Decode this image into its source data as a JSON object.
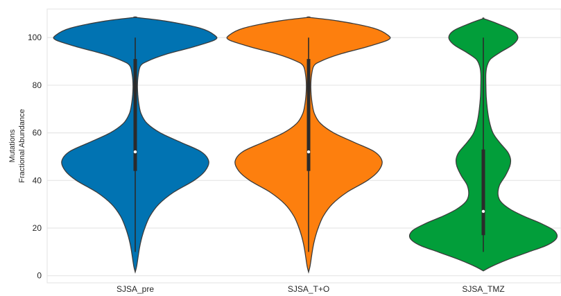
{
  "chart_data": {
    "type": "violin",
    "ylabel_lines": [
      "Mutations",
      "Fractional Abundance"
    ],
    "categories": [
      "SJSA_pre",
      "SJSA_T+O",
      "SJSA_TMZ"
    ],
    "y_ticks": [
      0,
      20,
      40,
      60,
      80,
      100
    ],
    "ylim": [
      -3,
      112
    ],
    "grid": "horizontal",
    "violins": [
      {
        "label": "SJSA_pre",
        "color": "#0173b2",
        "whisker": [
          10,
          100
        ],
        "box": [
          44,
          91
        ],
        "median": 52,
        "density": [
          [
            1.5,
            0.0
          ],
          [
            4,
            0.02
          ],
          [
            8,
            0.04
          ],
          [
            12,
            0.06
          ],
          [
            16,
            0.09
          ],
          [
            20,
            0.13
          ],
          [
            25,
            0.2
          ],
          [
            30,
            0.32
          ],
          [
            35,
            0.52
          ],
          [
            40,
            0.8
          ],
          [
            44,
            0.95
          ],
          [
            48,
            1.0
          ],
          [
            52,
            0.9
          ],
          [
            56,
            0.62
          ],
          [
            60,
            0.34
          ],
          [
            64,
            0.16
          ],
          [
            68,
            0.08
          ],
          [
            72,
            0.05
          ],
          [
            76,
            0.035
          ],
          [
            80,
            0.03
          ],
          [
            84,
            0.04
          ],
          [
            88,
            0.07
          ],
          [
            90,
            0.16
          ],
          [
            93,
            0.42
          ],
          [
            96,
            0.78
          ],
          [
            99,
            1.08
          ],
          [
            101,
            1.08
          ],
          [
            104,
            0.88
          ],
          [
            107,
            0.4
          ],
          [
            108.5,
            0.0
          ]
        ]
      },
      {
        "label": "SJSA_T+O",
        "color": "#fd7f0e",
        "whisker": [
          10,
          100
        ],
        "box": [
          44,
          91
        ],
        "median": 52,
        "density": [
          [
            1.5,
            0.0
          ],
          [
            4,
            0.02
          ],
          [
            8,
            0.04
          ],
          [
            12,
            0.06
          ],
          [
            16,
            0.09
          ],
          [
            20,
            0.13
          ],
          [
            25,
            0.2
          ],
          [
            30,
            0.32
          ],
          [
            35,
            0.52
          ],
          [
            40,
            0.8
          ],
          [
            44,
            0.95
          ],
          [
            48,
            1.0
          ],
          [
            52,
            0.9
          ],
          [
            56,
            0.62
          ],
          [
            60,
            0.34
          ],
          [
            64,
            0.16
          ],
          [
            68,
            0.08
          ],
          [
            72,
            0.05
          ],
          [
            76,
            0.035
          ],
          [
            80,
            0.03
          ],
          [
            84,
            0.04
          ],
          [
            88,
            0.07
          ],
          [
            90,
            0.16
          ],
          [
            93,
            0.42
          ],
          [
            96,
            0.78
          ],
          [
            99,
            1.08
          ],
          [
            101,
            1.08
          ],
          [
            104,
            0.88
          ],
          [
            107,
            0.4
          ],
          [
            108.5,
            0.0
          ]
        ]
      },
      {
        "label": "SJSA_TMZ",
        "color": "#029e3a",
        "whisker": [
          10,
          100
        ],
        "box": [
          17,
          53
        ],
        "median": 27,
        "density": [
          [
            2,
            0.0
          ],
          [
            4,
            0.12
          ],
          [
            7,
            0.35
          ],
          [
            10,
            0.62
          ],
          [
            13,
            0.88
          ],
          [
            16,
            1.0
          ],
          [
            19,
            0.96
          ],
          [
            22,
            0.78
          ],
          [
            25,
            0.55
          ],
          [
            28,
            0.36
          ],
          [
            31,
            0.24
          ],
          [
            34,
            0.2
          ],
          [
            38,
            0.22
          ],
          [
            42,
            0.3
          ],
          [
            46,
            0.36
          ],
          [
            49,
            0.37
          ],
          [
            52,
            0.33
          ],
          [
            56,
            0.22
          ],
          [
            60,
            0.13
          ],
          [
            65,
            0.08
          ],
          [
            70,
            0.055
          ],
          [
            75,
            0.04
          ],
          [
            80,
            0.035
          ],
          [
            85,
            0.035
          ],
          [
            88,
            0.05
          ],
          [
            91,
            0.1
          ],
          [
            94,
            0.24
          ],
          [
            97,
            0.4
          ],
          [
            100,
            0.47
          ],
          [
            103,
            0.4
          ],
          [
            106,
            0.18
          ],
          [
            108,
            0.0
          ]
        ]
      }
    ]
  }
}
